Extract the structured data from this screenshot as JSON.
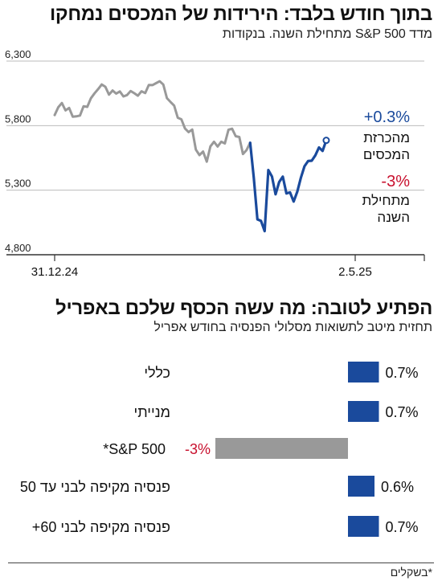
{
  "top": {
    "title": "בתוך חודש בלבד: הירידות של המכסים נמחקו",
    "subtitle": "מדד S&P 500 מתחילת השנה. בנקודות"
  },
  "bottom": {
    "title": "הפתיע לטובה: מה עשה הכסף שלכם באפריל",
    "subtitle": "תחזית מיטב לתשואות מסלולי הפנסיה בחודש אפריל"
  },
  "footnote": "*בשקלים",
  "colors": {
    "gray": "#999999",
    "blue": "#1a4a9c",
    "red": "#c8102e",
    "axis": "#333333"
  },
  "chart_data": [
    {
      "type": "line",
      "title": "בתוך חודש בלבד: הירידות של המכסים נמחקו",
      "ylabel": "מדד S&P 500 מתחילת השנה. בנקודות",
      "ylim": [
        4800,
        6300
      ],
      "yticks": [
        "6,300",
        "5,800",
        "5,300",
        "4,800"
      ],
      "ytick_values": [
        6300,
        5800,
        5300,
        4800
      ],
      "xticks": [
        "31.12.24",
        "2.5.25"
      ],
      "x_range": [
        0,
        84
      ],
      "xtick_positions": [
        0,
        83
      ],
      "grid": true,
      "series": [
        {
          "color": "gray",
          "values": [
            5882,
            5942,
            5975,
            5918,
            5937,
            5869,
            5872,
            5878,
            5950,
            5945,
            6012,
            6050,
            6083,
            6119,
            6101,
            6040,
            6072,
            6048,
            6065,
            6026,
            6037,
            6068,
            6051,
            6032,
            6066,
            6052,
            6115,
            6114,
            6129,
            6144,
            6118,
            6013,
            5983,
            5955,
            5861,
            5849,
            5778,
            5750,
            5770,
            5614,
            5572,
            5599,
            5521,
            5639,
            5675,
            5638,
            5675,
            5662,
            5768,
            5776,
            5718,
            5712,
            5580,
            5611,
            5667
          ]
        },
        {
          "color": "blue",
          "x_start": 54,
          "values": [
            5667,
            5396,
            5074,
            5062,
            4983,
            5456,
            5406,
            5268,
            5363,
            5405,
            5275,
            5283,
            5212,
            5288,
            5396,
            5485,
            5526,
            5528,
            5570,
            5631,
            5604,
            5686
          ]
        }
      ],
      "annotations": [
        {
          "value": "+0.3%",
          "color": "blue",
          "label_lines": [
            "מהכרזת",
            "המכסים"
          ]
        },
        {
          "value": "-3%",
          "color": "red",
          "label_lines": [
            "מתחילת",
            "השנה"
          ]
        }
      ]
    },
    {
      "type": "bar",
      "title": "הפתיע לטובה: מה עשה הכסף שלכם באפריל",
      "subtitle": "תחזית מיטב לתשואות מסלולי הפנסיה בחודש אפריל",
      "categories": [
        "כללי",
        "מנייתי",
        "S&P 500*",
        "פנסיה מקיפה לבני עד 50",
        "פנסיה מקיפה לבני 60+"
      ],
      "values": [
        0.7,
        0.7,
        -3,
        0.6,
        0.7
      ],
      "value_labels": [
        "0.7%",
        "0.7%",
        "-3%",
        "0.6%",
        "0.7%"
      ],
      "colors": [
        "blue",
        "blue",
        "gray",
        "blue",
        "blue"
      ]
    }
  ]
}
